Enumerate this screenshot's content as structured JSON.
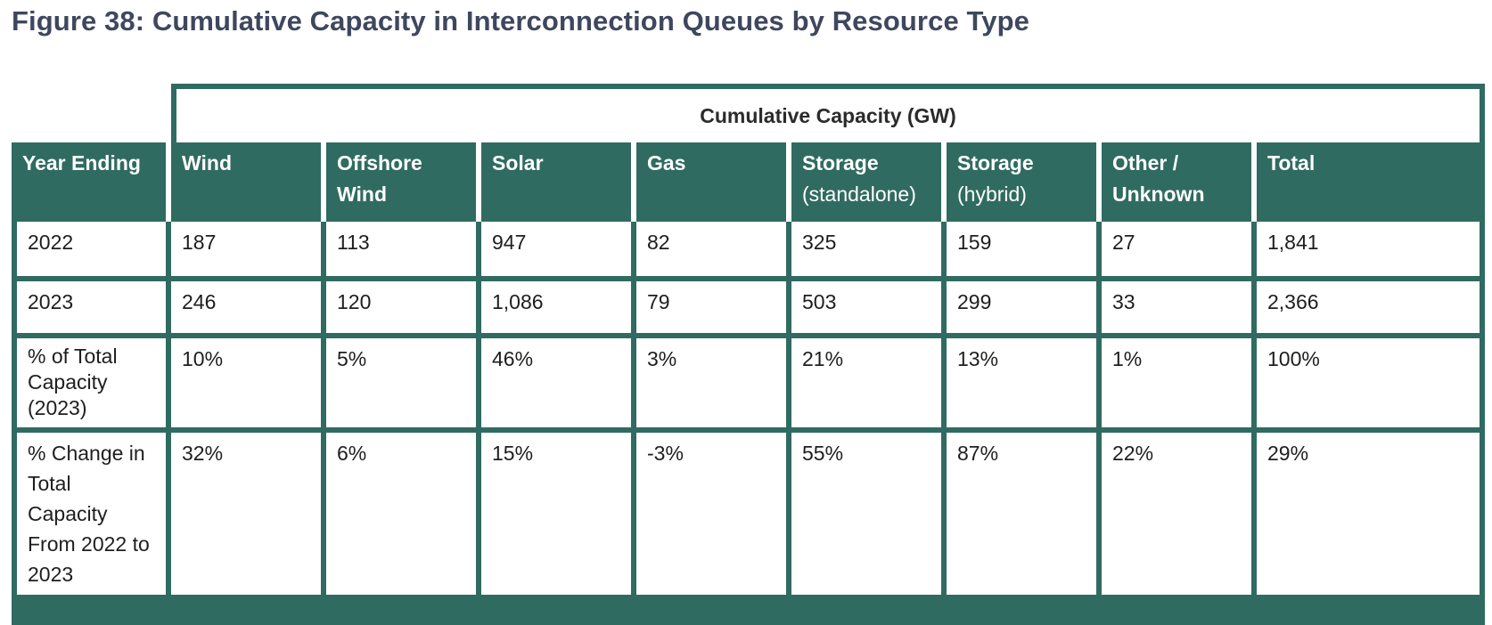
{
  "figure": {
    "title": "Figure 38: Cumulative Capacity in Interconnection Queues by Resource Type"
  },
  "table": {
    "super_header": "Cumulative Capacity (GW)",
    "columns": [
      {
        "bold": "Year Ending",
        "normal": ""
      },
      {
        "bold": "Wind",
        "normal": ""
      },
      {
        "bold": "Offshore Wind",
        "normal": ""
      },
      {
        "bold": "Solar",
        "normal": ""
      },
      {
        "bold": "Gas",
        "normal": ""
      },
      {
        "bold": "Storage",
        "normal": "(standalone)"
      },
      {
        "bold": "Storage",
        "normal": "(hybrid)"
      },
      {
        "bold": "Other / Unknown",
        "normal": ""
      },
      {
        "bold": "Total",
        "normal": ""
      }
    ],
    "rows": [
      [
        "2022",
        "187",
        "113",
        "947",
        "82",
        "325",
        "159",
        "27",
        "1,841"
      ],
      [
        "2023",
        "246",
        "120",
        "1,086",
        "79",
        "503",
        "299",
        "33",
        "2,366"
      ],
      [
        "% of Total Capacity (2023)",
        "10%",
        "5%",
        "46%",
        "3%",
        "21%",
        "13%",
        "1%",
        "100%"
      ],
      [
        "% Change in Total Capacity From 2022 to 2023",
        "32%",
        "6%",
        "15%",
        "-3%",
        "55%",
        "87%",
        "22%",
        "29%"
      ]
    ]
  },
  "colors": {
    "header_green": "#306b61",
    "title_color": "#3f475f"
  }
}
